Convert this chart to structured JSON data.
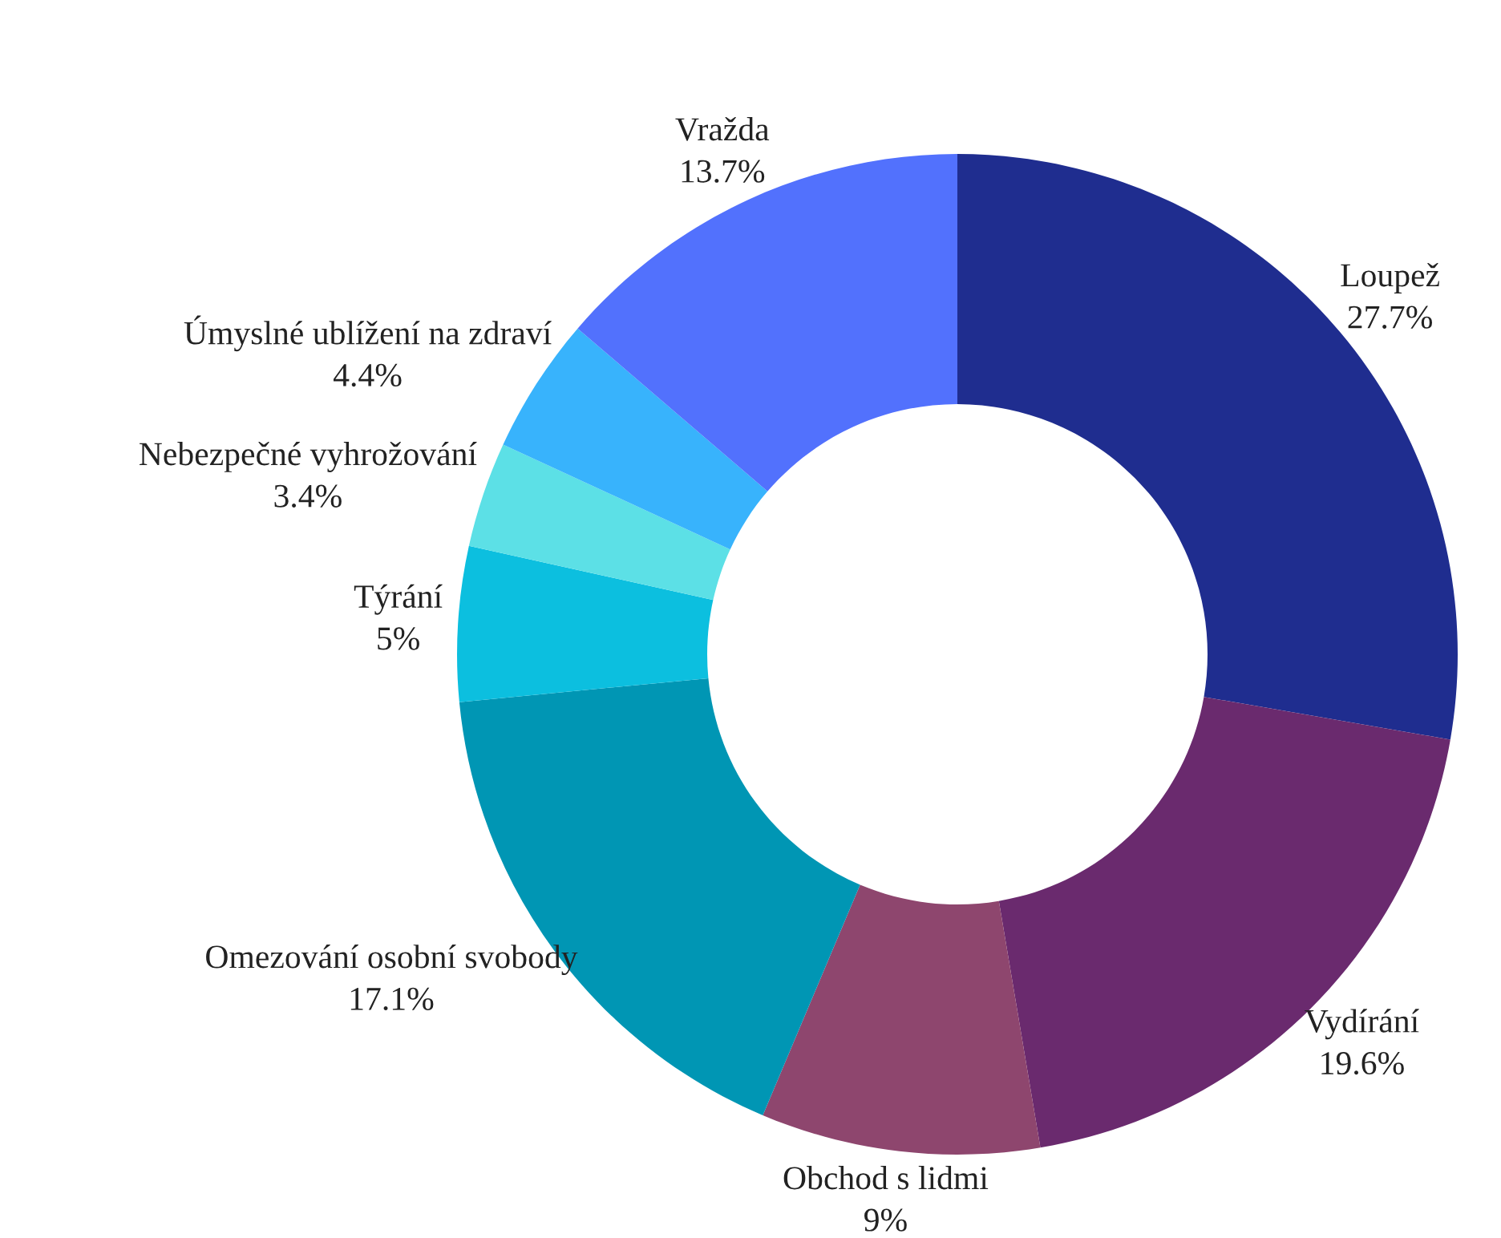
{
  "chart_data": {
    "type": "donut",
    "categories": [
      "Loupež",
      "Vydírání",
      "Obchod s lidmi",
      "Omezování osobní svobody",
      "Týrání",
      "Nebezpečné vyhrožování",
      "Úmyslné ublížení na zdraví",
      "Vražda"
    ],
    "values": [
      27.7,
      19.6,
      9,
      17.1,
      5,
      3.4,
      4.4,
      13.7
    ],
    "value_labels": [
      "27.7%",
      "19.6%",
      "9%",
      "17.1%",
      "5%",
      "3.4%",
      "4.4%",
      "13.7%"
    ],
    "colors": [
      "#1f2d8f",
      "#6a2a6e",
      "#8e466e",
      "#0096b4",
      "#0cbfdf",
      "#5ce0e6",
      "#38b3fc",
      "#5271fd"
    ],
    "legend": false
  }
}
